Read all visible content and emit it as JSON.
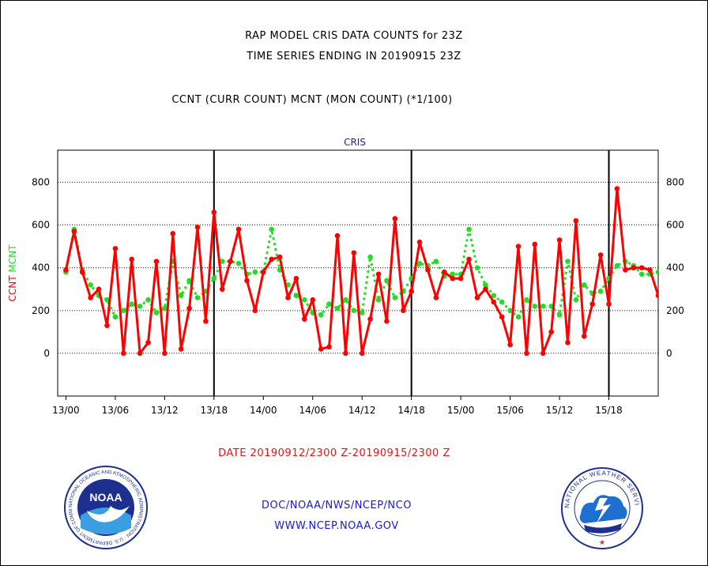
{
  "header": {
    "line1": "RAP MODEL CRIS DATA COUNTS for 23Z",
    "line2": "TIME SERIES ENDING IN 20190915 23Z",
    "line3": "CCNT (CURR COUNT) MCNT (MON COUNT) (*1/100)"
  },
  "chart_data": {
    "type": "line",
    "title": "CRIS",
    "ylabel_left": [
      "CCNT",
      "MCNT"
    ],
    "ylim": [
      -200,
      950
    ],
    "yticks": [
      0,
      200,
      400,
      600,
      800
    ],
    "ytick_labels": [
      "0",
      "200",
      "400",
      "600",
      "800"
    ],
    "xlim": [
      -1,
      72
    ],
    "xticks": [
      0,
      6,
      12,
      18,
      24,
      30,
      36,
      42,
      48,
      54,
      60,
      66
    ],
    "xtick_labels": [
      "13/00",
      "13/06",
      "13/12",
      "13/18",
      "14/00",
      "14/06",
      "14/12",
      "14/18",
      "15/00",
      "15/06",
      "15/12",
      "15/18"
    ],
    "day_separators": [
      18,
      42,
      66
    ],
    "grid": true,
    "xlabel": "DATE 20190912/2300 Z-20190915/2300 Z",
    "series": [
      {
        "name": "CCNT",
        "color": "#ff0000",
        "style": "solid",
        "values": [
          390,
          570,
          380,
          260,
          300,
          130,
          490,
          0,
          440,
          0,
          50,
          430,
          0,
          560,
          20,
          210,
          590,
          150,
          660,
          300,
          430,
          580,
          340,
          200,
          380,
          440,
          450,
          260,
          350,
          160,
          250,
          20,
          30,
          550,
          0,
          470,
          0,
          160,
          370,
          150,
          630,
          200,
          290,
          520,
          390,
          260,
          380,
          350,
          350,
          440,
          260,
          300,
          240,
          170,
          40,
          500,
          0,
          510,
          0,
          100,
          530,
          50,
          620,
          80,
          230,
          460,
          230,
          770,
          390,
          400,
          400,
          390,
          270
        ]
      },
      {
        "name": "MCNT",
        "color": "#22dd22",
        "style": "dotted",
        "values": [
          380,
          580,
          390,
          320,
          270,
          250,
          170,
          200,
          230,
          220,
          250,
          190,
          210,
          430,
          270,
          340,
          260,
          290,
          350,
          430,
          430,
          420,
          370,
          380,
          380,
          580,
          390,
          320,
          270,
          250,
          190,
          180,
          230,
          210,
          250,
          200,
          190,
          450,
          250,
          340,
          260,
          290,
          350,
          420,
          410,
          430,
          360,
          370,
          370,
          580,
          400,
          320,
          270,
          240,
          200,
          170,
          250,
          220,
          220,
          220,
          180,
          430,
          250,
          320,
          280,
          290,
          350,
          410,
          430,
          410,
          370,
          370,
          380
        ]
      }
    ]
  },
  "footer": {
    "date_range": "DATE 20190912/2300 Z-20190915/2300 Z",
    "org": "DOC/NOAA/NWS/NCEP/NCO",
    "url": "WWW.NCEP.NOAA.GOV"
  },
  "logos": {
    "noaa_text": "NOAA",
    "noaa_ring": "NATIONAL OCEANIC AND ATMOSPHERIC ADMINISTRATION · U.S. DEPARTMENT OF COMMERCE",
    "nws_ring": "NATIONAL WEATHER SERVICE"
  },
  "colors": {
    "ccnt": "#ff0000",
    "mcnt": "#22dd22",
    "text_blue": "#1a1acc",
    "date_red": "#ee1111"
  }
}
